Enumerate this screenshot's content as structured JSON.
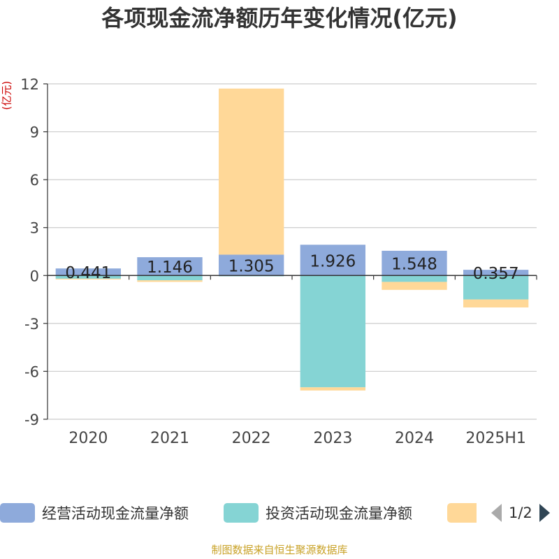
{
  "chart_data": {
    "type": "bar",
    "stacked": true,
    "title": "各项现金流净额历年变化情况(亿元)",
    "ylabel": "(亿元)",
    "categories": [
      "2020",
      "2021",
      "2022",
      "2023",
      "2024",
      "2025H1"
    ],
    "yticks": [
      12,
      9,
      6,
      3,
      0,
      -3,
      -6,
      -9
    ],
    "ylim": [
      -9,
      12
    ],
    "grid": true,
    "legend_position": "bottom",
    "series": [
      {
        "name": "经营活动现金流量净额",
        "color": "#8eaadb",
        "values": [
          0.441,
          1.146,
          1.305,
          1.926,
          1.548,
          0.357
        ],
        "labels": [
          "0.441",
          "1.146",
          "1.305",
          "1.926",
          "1.548",
          "0.357"
        ]
      },
      {
        "name": "投资活动现金流量净额",
        "color": "#85d4d4",
        "values": [
          -0.2,
          -0.3,
          -0.05,
          -7.0,
          -0.4,
          -1.5
        ]
      },
      {
        "name": "",
        "color": "#ffd898",
        "values": [
          -0.05,
          -0.1,
          10.4,
          -0.2,
          -0.5,
          -0.5
        ]
      }
    ]
  },
  "legend": {
    "pager_text": "1/2"
  },
  "footer": {
    "source": "制图数据来自恒生聚源数据库"
  }
}
